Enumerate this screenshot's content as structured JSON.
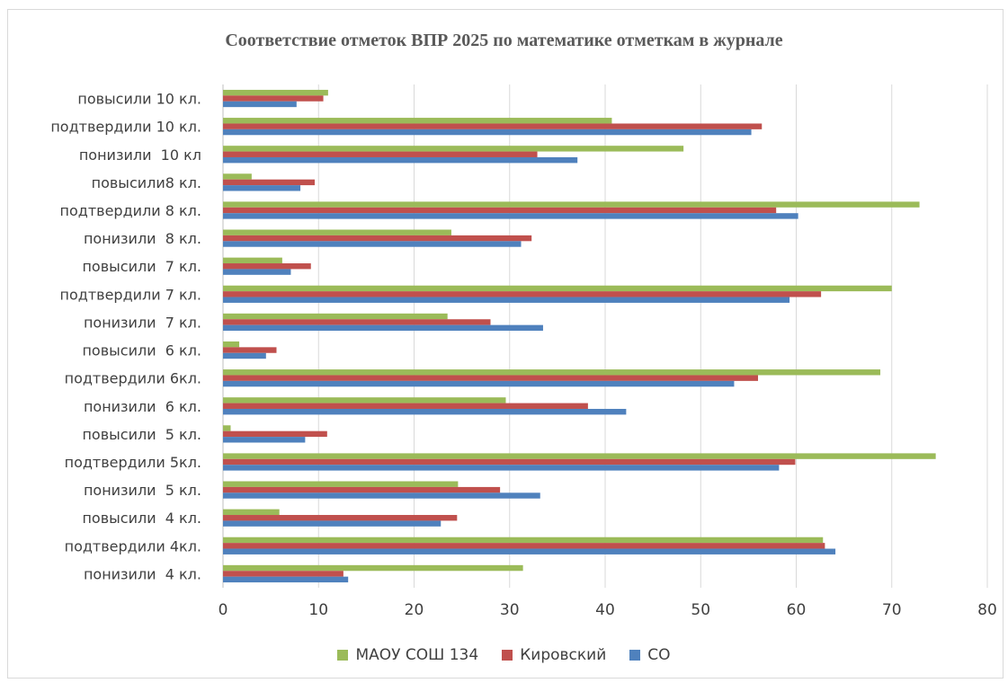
{
  "chart_data": {
    "type": "bar",
    "orientation": "horizontal",
    "title": "Соответствие  отметок  ВПР  2025 по  математике  отметкам  в журнале",
    "categories": [
      "повысили 10 кл.",
      "подтвердили 10 кл.",
      "понизили  10 кл",
      "повысили8 кл.",
      "подтвердили 8 кл.",
      "понизили  8 кл.",
      "повысили  7 кл.",
      "подтвердили 7 кл.",
      "понизили  7 кл.",
      "повысили  6 кл.",
      "подтвердили 6кл.",
      "понизили  6 кл.",
      "повысили  5 кл.",
      "подтвердили 5кл.",
      "понизили  5 кл.",
      "повысили  4 кл.",
      "подтвердили 4кл.",
      "понизили  4 кл."
    ],
    "series": [
      {
        "name": "МАОУ СОШ 134",
        "color": "#9bbb59",
        "values": [
          11.0,
          40.7,
          48.2,
          3.0,
          72.9,
          23.9,
          6.2,
          70.0,
          23.5,
          1.7,
          68.8,
          29.6,
          0.8,
          74.6,
          24.6,
          5.9,
          62.8,
          31.4
        ]
      },
      {
        "name": "Кировский",
        "color": "#c0504d",
        "values": [
          10.5,
          56.4,
          32.9,
          9.6,
          57.9,
          32.3,
          9.2,
          62.6,
          28.0,
          5.6,
          56.0,
          38.2,
          10.9,
          59.9,
          29.0,
          24.5,
          63.0,
          12.6
        ]
      },
      {
        "name": "СО",
        "color": "#4f81bd",
        "values": [
          7.7,
          55.3,
          37.1,
          8.1,
          60.2,
          31.2,
          7.1,
          59.3,
          33.5,
          4.5,
          53.5,
          42.2,
          8.6,
          58.2,
          33.2,
          22.8,
          64.1,
          13.1
        ]
      }
    ],
    "xlim": [
      0,
      80
    ],
    "xticks": [
      "0",
      "10",
      "20",
      "30",
      "40",
      "50",
      "60",
      "70",
      "80"
    ],
    "grid": true,
    "legend_position": "bottom"
  }
}
